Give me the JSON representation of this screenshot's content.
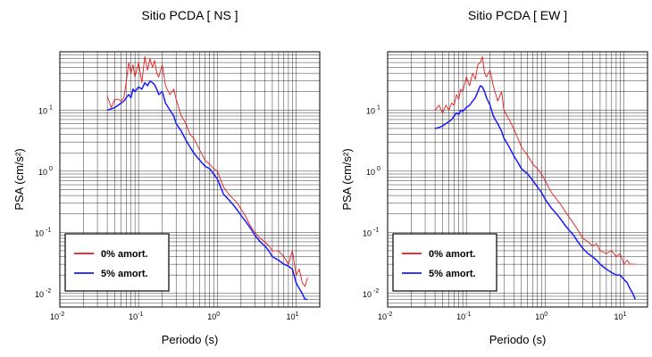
{
  "chart_data": [
    {
      "type": "line",
      "title": "Sitio PCDA [ NS ]",
      "xlabel": "Periodo (s)",
      "ylabel": "PSA (cm/s²)",
      "x_scale": "log",
      "y_scale": "log",
      "xlim": [
        0.01,
        20
      ],
      "ylim": [
        0.006,
        90
      ],
      "grid": true,
      "legend_position": "bottom-left",
      "x_tick_base": "10",
      "x_tick_exponents": [
        "-2",
        "-1",
        "0",
        "1"
      ],
      "y_tick_base": "10",
      "y_tick_exponents": [
        "-2",
        "-1",
        "0",
        "1"
      ],
      "series": [
        {
          "name": "0% amort.",
          "color": "#e8191c",
          "x": [
            0.04,
            0.045,
            0.05,
            0.055,
            0.06,
            0.065,
            0.07,
            0.075,
            0.08,
            0.085,
            0.09,
            0.1,
            0.11,
            0.12,
            0.13,
            0.14,
            0.15,
            0.16,
            0.17,
            0.18,
            0.2,
            0.22,
            0.25,
            0.28,
            0.3,
            0.35,
            0.4,
            0.45,
            0.5,
            0.6,
            0.7,
            0.8,
            0.9,
            1.0,
            1.2,
            1.4,
            1.6,
            1.8,
            2.0,
            2.3,
            2.6,
            3.0,
            3.5,
            4.0,
            4.5,
            5.0,
            6.0,
            7.0,
            8.0,
            9.0,
            10.0,
            11.0,
            12.0,
            13.0,
            14.0
          ],
          "values": [
            17,
            11,
            15,
            15,
            14,
            16,
            30,
            60,
            40,
            55,
            35,
            60,
            28,
            75,
            45,
            70,
            50,
            65,
            40,
            35,
            55,
            25,
            18,
            22,
            15,
            8,
            6,
            4,
            3.5,
            2.2,
            1.5,
            1.3,
            1.1,
            1.0,
            0.55,
            0.42,
            0.35,
            0.3,
            0.24,
            0.18,
            0.13,
            0.1,
            0.08,
            0.07,
            0.06,
            0.05,
            0.05,
            0.04,
            0.03,
            0.05,
            0.02,
            0.025,
            0.015,
            0.013,
            0.018
          ]
        },
        {
          "name": "5% amort.",
          "color": "#1a1aff",
          "x": [
            0.04,
            0.045,
            0.05,
            0.055,
            0.06,
            0.065,
            0.07,
            0.075,
            0.08,
            0.085,
            0.09,
            0.1,
            0.11,
            0.12,
            0.13,
            0.14,
            0.15,
            0.16,
            0.17,
            0.18,
            0.2,
            0.22,
            0.25,
            0.28,
            0.3,
            0.35,
            0.4,
            0.45,
            0.5,
            0.6,
            0.7,
            0.8,
            0.9,
            1.0,
            1.2,
            1.4,
            1.6,
            1.8,
            2.0,
            2.3,
            2.6,
            3.0,
            3.5,
            4.0,
            4.5,
            5.0,
            6.0,
            7.0,
            8.0,
            9.0,
            10.0,
            11.0,
            12.0,
            13.0,
            14.0
          ],
          "values": [
            10,
            10.5,
            11,
            12,
            13,
            14,
            16,
            18,
            16,
            22,
            20,
            24,
            22,
            28,
            25,
            30,
            28,
            26,
            22,
            18,
            20,
            13,
            10,
            8,
            6,
            4.5,
            3.2,
            2.5,
            2.0,
            1.5,
            1.2,
            1.1,
            0.9,
            0.75,
            0.42,
            0.34,
            0.28,
            0.23,
            0.19,
            0.15,
            0.12,
            0.09,
            0.07,
            0.06,
            0.05,
            0.04,
            0.035,
            0.03,
            0.028,
            0.025,
            0.015,
            0.012,
            0.01,
            0.008,
            0.008
          ]
        }
      ]
    },
    {
      "type": "line",
      "title": "Sitio PCDA [ EW ]",
      "xlabel": "Periodo (s)",
      "ylabel": "PSA (cm/s²)",
      "x_scale": "log",
      "y_scale": "log",
      "xlim": [
        0.01,
        20
      ],
      "ylim": [
        0.006,
        90
      ],
      "grid": true,
      "legend_position": "bottom-left",
      "x_tick_base": "10",
      "x_tick_exponents": [
        "-2",
        "-1",
        "0",
        "1"
      ],
      "y_tick_base": "10",
      "y_tick_exponents": [
        "-2",
        "-1",
        "0",
        "1"
      ],
      "series": [
        {
          "name": "0% amort.",
          "color": "#e8191c",
          "x": [
            0.04,
            0.045,
            0.05,
            0.055,
            0.06,
            0.065,
            0.07,
            0.075,
            0.08,
            0.085,
            0.09,
            0.1,
            0.11,
            0.12,
            0.13,
            0.14,
            0.15,
            0.16,
            0.17,
            0.18,
            0.2,
            0.22,
            0.25,
            0.28,
            0.3,
            0.35,
            0.4,
            0.45,
            0.5,
            0.6,
            0.7,
            0.8,
            0.9,
            1.0,
            1.2,
            1.4,
            1.6,
            1.8,
            2.0,
            2.3,
            2.6,
            3.0,
            3.5,
            4.0,
            4.5,
            5.0,
            6.0,
            7.0,
            8.0,
            9.0,
            10.0,
            11.0,
            12.0,
            13.0,
            14.0
          ],
          "values": [
            10,
            12,
            9,
            12,
            10,
            13,
            12,
            18,
            15,
            22,
            20,
            35,
            25,
            40,
            32,
            55,
            60,
            75,
            40,
            35,
            45,
            25,
            14,
            20,
            10,
            7,
            5,
            3.5,
            2.5,
            1.8,
            1.3,
            1.1,
            0.9,
            0.7,
            0.45,
            0.35,
            0.28,
            0.22,
            0.18,
            0.14,
            0.11,
            0.08,
            0.07,
            0.06,
            0.065,
            0.05,
            0.045,
            0.05,
            0.04,
            0.045,
            0.03,
            0.035,
            0.03,
            0.03,
            0.03
          ]
        },
        {
          "name": "5% amort.",
          "color": "#1a1aff",
          "x": [
            0.04,
            0.045,
            0.05,
            0.055,
            0.06,
            0.065,
            0.07,
            0.075,
            0.08,
            0.085,
            0.09,
            0.1,
            0.11,
            0.12,
            0.13,
            0.14,
            0.15,
            0.16,
            0.17,
            0.18,
            0.2,
            0.22,
            0.25,
            0.28,
            0.3,
            0.35,
            0.4,
            0.45,
            0.5,
            0.6,
            0.7,
            0.8,
            0.9,
            1.0,
            1.2,
            1.4,
            1.6,
            1.8,
            2.0,
            2.3,
            2.6,
            3.0,
            3.5,
            4.0,
            4.5,
            5.0,
            6.0,
            7.0,
            8.0,
            9.0,
            10.0,
            11.0,
            12.0,
            13.0,
            14.0
          ],
          "values": [
            5,
            5.2,
            5.5,
            6,
            6.5,
            7,
            8,
            9,
            8.5,
            10,
            9.5,
            11,
            12,
            14,
            16,
            20,
            25,
            24,
            20,
            16,
            12,
            8,
            6,
            4.5,
            3.5,
            2.5,
            1.8,
            1.4,
            1.1,
            0.9,
            0.7,
            0.55,
            0.45,
            0.35,
            0.25,
            0.2,
            0.16,
            0.13,
            0.11,
            0.09,
            0.07,
            0.055,
            0.045,
            0.04,
            0.035,
            0.03,
            0.025,
            0.022,
            0.02,
            0.02,
            0.017,
            0.015,
            0.012,
            0.01,
            0.008
          ]
        }
      ]
    }
  ]
}
